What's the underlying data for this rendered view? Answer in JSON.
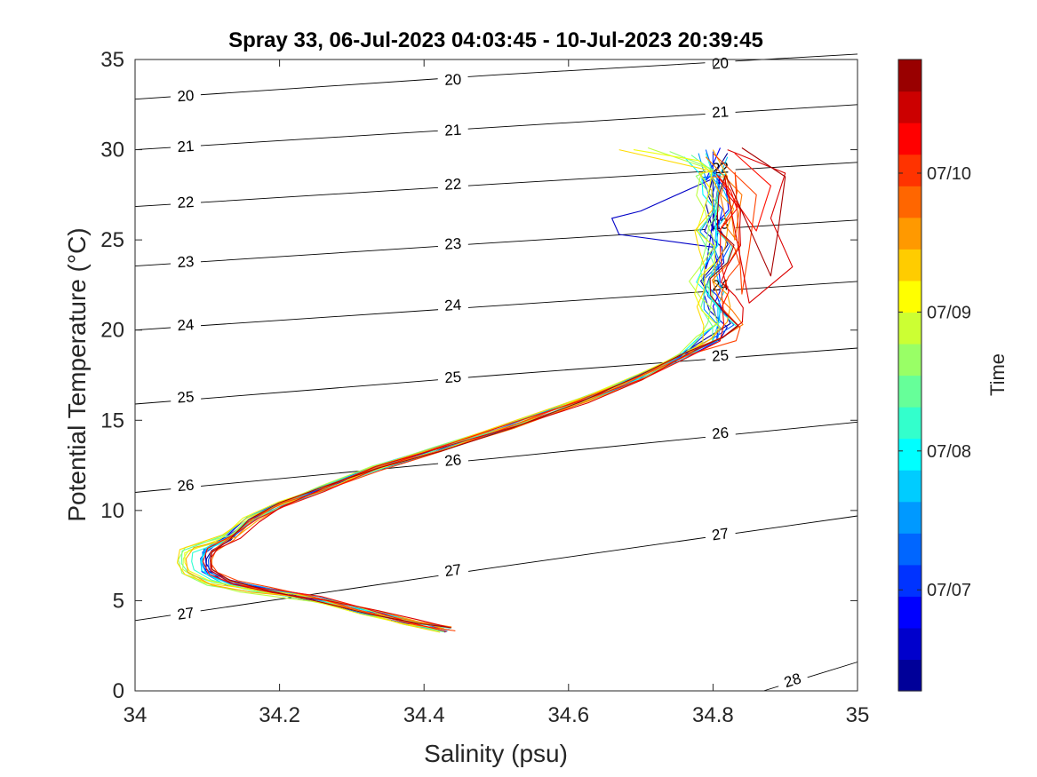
{
  "chart_data": {
    "type": "line",
    "title": "Spray 33, 06-Jul-2023 04:03:45 - 10-Jul-2023 20:39:45",
    "xlabel": "Salinity (psu)",
    "ylabel": "Potential Temperature (°C)",
    "xlim": [
      34,
      35
    ],
    "ylim": [
      0,
      35
    ],
    "xticks": [
      "34",
      "34.2",
      "34.4",
      "34.6",
      "34.8",
      "35"
    ],
    "yticks": [
      "0",
      "5",
      "10",
      "15",
      "20",
      "25",
      "30",
      "35"
    ],
    "grid": false,
    "colorbar": {
      "label": "Time",
      "colormap": "jet",
      "levels": 20,
      "ticks": [
        "07/07",
        "07/08",
        "07/09",
        "07/10"
      ],
      "tick_positions": [
        0.16,
        0.38,
        0.6,
        0.82
      ]
    },
    "density_contours": [
      {
        "label": "20",
        "points": [
          [
            34.0,
            32.8
          ],
          [
            34.5,
            34.15
          ],
          [
            35.0,
            35.3
          ]
        ],
        "label_at": [
          [
            34.07,
            33.0
          ],
          [
            34.44,
            33.9
          ],
          [
            34.81,
            34.8
          ]
        ]
      },
      {
        "label": "21",
        "points": [
          [
            34.0,
            30.0
          ],
          [
            34.5,
            31.25
          ],
          [
            35.0,
            32.5
          ]
        ],
        "label_at": [
          [
            34.07,
            30.2
          ],
          [
            34.44,
            31.1
          ],
          [
            34.81,
            32.1
          ]
        ]
      },
      {
        "label": "22",
        "points": [
          [
            34.0,
            26.85
          ],
          [
            34.5,
            28.1
          ],
          [
            35.0,
            29.3
          ]
        ],
        "label_at": [
          [
            34.07,
            27.1
          ],
          [
            34.44,
            28.1
          ],
          [
            34.81,
            29.0
          ]
        ]
      },
      {
        "label": "23",
        "points": [
          [
            34.0,
            23.55
          ],
          [
            34.5,
            24.85
          ],
          [
            35.0,
            26.1
          ]
        ],
        "label_at": [
          [
            34.07,
            23.8
          ],
          [
            34.44,
            24.8
          ],
          [
            34.81,
            25.9
          ]
        ]
      },
      {
        "label": "24",
        "points": [
          [
            34.0,
            20.0
          ],
          [
            34.5,
            21.35
          ],
          [
            35.0,
            22.7
          ]
        ],
        "label_at": [
          [
            34.07,
            20.3
          ],
          [
            34.44,
            21.4
          ],
          [
            34.81,
            22.5
          ]
        ]
      },
      {
        "label": "25",
        "points": [
          [
            34.0,
            15.9
          ],
          [
            34.5,
            17.5
          ],
          [
            35.0,
            19.0
          ]
        ],
        "label_at": [
          [
            34.07,
            16.3
          ],
          [
            34.44,
            17.4
          ],
          [
            34.81,
            18.6
          ]
        ]
      },
      {
        "label": "26",
        "points": [
          [
            34.0,
            11.0
          ],
          [
            34.5,
            12.9
          ],
          [
            35.0,
            14.9
          ]
        ],
        "label_at": [
          [
            34.07,
            11.4
          ],
          [
            34.44,
            12.8
          ],
          [
            34.81,
            14.3
          ]
        ]
      },
      {
        "label": "27",
        "points": [
          [
            34.0,
            3.9
          ],
          [
            34.5,
            6.85
          ],
          [
            35.0,
            9.7
          ]
        ],
        "label_at": [
          [
            34.07,
            4.3
          ],
          [
            34.44,
            6.7
          ],
          [
            34.81,
            8.7
          ]
        ]
      },
      {
        "label": "28",
        "points": [
          [
            34.87,
            0.0
          ],
          [
            35.0,
            1.6
          ]
        ],
        "label_at": [
          [
            34.91,
            0.6
          ]
        ]
      }
    ],
    "profile_template": [
      [
        34.43,
        3.4
      ],
      [
        34.38,
        3.8
      ],
      [
        34.32,
        4.4
      ],
      [
        34.25,
        5.1
      ],
      [
        34.19,
        5.6
      ],
      [
        34.14,
        6.0
      ],
      [
        34.11,
        6.6
      ],
      [
        34.105,
        7.2
      ],
      [
        34.11,
        7.8
      ],
      [
        34.13,
        8.5
      ],
      [
        34.16,
        9.5
      ],
      [
        34.2,
        10.3
      ],
      [
        34.26,
        11.2
      ],
      [
        34.33,
        12.3
      ],
      [
        34.42,
        13.4
      ],
      [
        34.52,
        14.7
      ],
      [
        34.62,
        16.1
      ],
      [
        34.7,
        17.4
      ],
      [
        34.76,
        18.6
      ],
      [
        34.8,
        19.5
      ],
      [
        34.815,
        20.3
      ],
      [
        34.805,
        21.2
      ],
      [
        34.8,
        22.0
      ],
      [
        34.795,
        22.8
      ],
      [
        34.805,
        23.6
      ],
      [
        34.81,
        24.6
      ],
      [
        34.8,
        25.6
      ],
      [
        34.81,
        26.6
      ],
      [
        34.805,
        27.6
      ],
      [
        34.8,
        28.6
      ],
      [
        34.79,
        29.4
      ],
      [
        34.78,
        30.0
      ]
    ],
    "series": [
      {
        "t": 0.02,
        "dx": 0.0,
        "surface": [
          [
            34.82,
            29.8
          ],
          [
            34.8,
            28.5
          ],
          [
            34.79,
            27.0
          ],
          [
            34.8,
            25.5
          ]
        ]
      },
      {
        "t": 0.07,
        "dx": -0.002,
        "surface": [
          [
            34.8,
            28.4
          ],
          [
            34.7,
            26.6
          ],
          [
            34.66,
            26.2
          ],
          [
            34.67,
            25.3
          ],
          [
            34.8,
            24.6
          ],
          [
            34.79,
            23.4
          ]
        ]
      },
      {
        "t": 0.12,
        "dx": 0.003,
        "surface": [
          [
            34.81,
            30.1
          ],
          [
            34.79,
            28.3
          ]
        ]
      },
      {
        "t": 0.17,
        "dx": -0.004,
        "surface": [
          [
            34.8,
            29.9
          ],
          [
            34.8,
            28.5
          ]
        ]
      },
      {
        "t": 0.22,
        "dx": 0.002,
        "surface": [
          [
            34.79,
            30.0
          ],
          [
            34.8,
            28.8
          ]
        ]
      },
      {
        "t": 0.27,
        "dx": -0.006,
        "surface": [
          [
            34.78,
            29.8
          ],
          [
            34.79,
            28.4
          ]
        ]
      },
      {
        "t": 0.32,
        "dx": 0.004,
        "surface": [
          [
            34.82,
            29.6
          ],
          [
            34.81,
            28.6
          ]
        ]
      },
      {
        "t": 0.37,
        "dx": -0.008,
        "surface": [
          [
            34.76,
            29.6
          ],
          [
            34.79,
            28.3
          ]
        ]
      },
      {
        "t": 0.42,
        "dx": 0.006,
        "surface": [
          [
            34.79,
            29.8
          ],
          [
            34.8,
            28.6
          ]
        ]
      },
      {
        "t": 0.47,
        "dx": -0.01,
        "surface": [
          [
            34.77,
            29.7
          ],
          [
            34.8,
            28.8
          ]
        ]
      },
      {
        "t": 0.52,
        "dx": -0.012,
        "surface": [
          [
            34.74,
            29.9
          ],
          [
            34.8,
            28.9
          ]
        ]
      },
      {
        "t": 0.56,
        "dx": -0.016,
        "surface": [
          [
            34.71,
            30.1
          ],
          [
            34.79,
            29.0
          ]
        ]
      },
      {
        "t": 0.61,
        "dx": -0.014,
        "surface": [
          [
            34.69,
            30.0
          ],
          [
            34.78,
            29.4
          ]
        ]
      },
      {
        "t": 0.66,
        "dx": -0.018,
        "surface": [
          [
            34.67,
            30.0
          ],
          [
            34.8,
            28.8
          ]
        ]
      },
      {
        "t": 0.71,
        "dx": 0.01,
        "surface": [
          [
            34.8,
            30.0
          ],
          [
            34.82,
            28.5
          ]
        ]
      },
      {
        "t": 0.76,
        "dx": 0.015,
        "surface": [
          [
            34.79,
            29.6
          ],
          [
            34.84,
            27.5
          ],
          [
            34.83,
            25.0
          ]
        ]
      },
      {
        "t": 0.81,
        "dx": 0.02,
        "surface": [
          [
            34.8,
            29.8
          ],
          [
            34.86,
            27.5
          ],
          [
            34.85,
            24.5
          ],
          [
            34.84,
            22.0
          ]
        ]
      },
      {
        "t": 0.86,
        "dx": 0.012,
        "surface": [
          [
            34.83,
            29.8
          ],
          [
            34.88,
            28.0
          ],
          [
            34.86,
            25.5
          ]
        ]
      },
      {
        "t": 0.91,
        "dx": 0.025,
        "surface": [
          [
            34.82,
            30.0
          ],
          [
            34.9,
            28.7
          ],
          [
            34.88,
            26.2
          ],
          [
            34.91,
            23.5
          ],
          [
            34.85,
            21.5
          ]
        ]
      },
      {
        "t": 0.96,
        "dx": 0.008,
        "surface": [
          [
            34.84,
            30.1
          ],
          [
            34.9,
            28.5
          ],
          [
            34.89,
            25.5
          ],
          [
            34.88,
            23.0
          ]
        ]
      }
    ]
  }
}
